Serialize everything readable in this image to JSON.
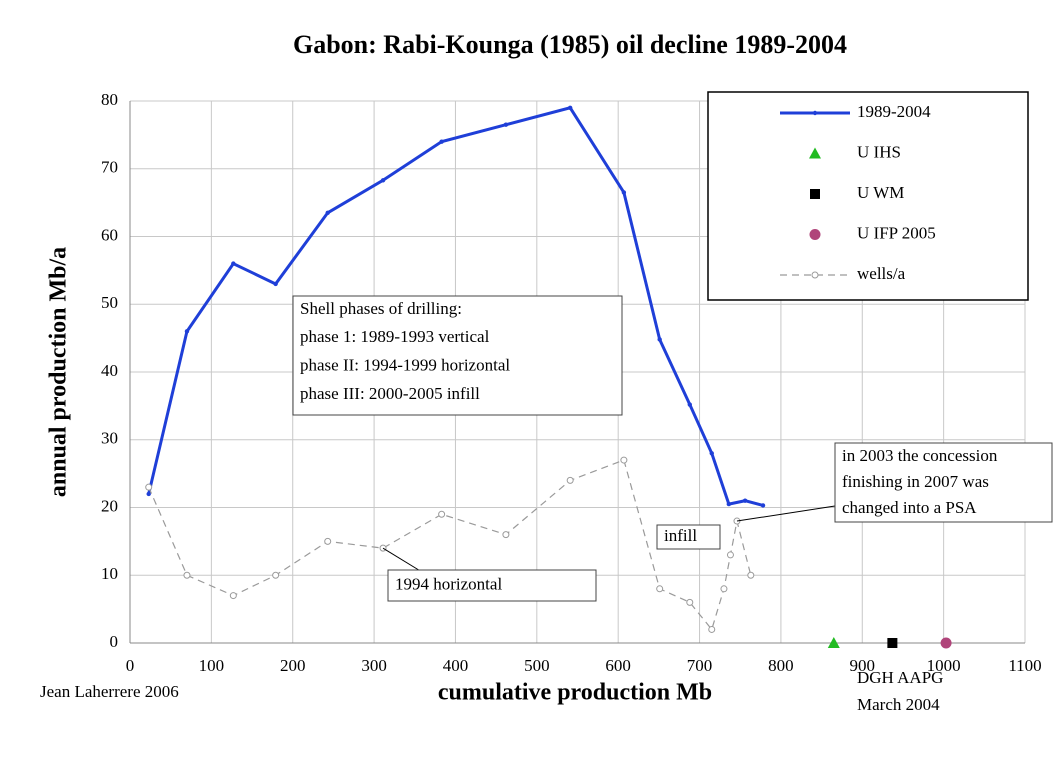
{
  "chart_data": {
    "type": "line",
    "title": "Gabon: Rabi-Kounga (1985) oil decline 1989-2004",
    "x_label": "cumulative production Mb",
    "y_label": "annual production Mb/a",
    "xlim": [
      0,
      1100
    ],
    "xticks": [
      0,
      100,
      200,
      300,
      400,
      500,
      600,
      700,
      800,
      900,
      1000,
      1100
    ],
    "ylim": [
      0,
      80
    ],
    "yticks": [
      0,
      10,
      20,
      30,
      40,
      50,
      60,
      70,
      80
    ],
    "grid": true,
    "legend": "upper right",
    "series": [
      {
        "name": "1989-2004",
        "color": "#1f3fd8",
        "marker": "dot",
        "dashed": false,
        "x": [
          23,
          70,
          127,
          179,
          243,
          311,
          383,
          462,
          541,
          607,
          651,
          688,
          715,
          736,
          756,
          778
        ],
        "values": [
          22,
          46,
          56,
          53,
          63.5,
          68.3,
          74,
          76.5,
          79,
          66.5,
          44.8,
          35.2,
          28,
          20.5,
          21,
          20.3
        ]
      },
      {
        "name": "U IHS",
        "color": "#22bb22",
        "marker": "triangle",
        "dashed": false,
        "x": [
          865
        ],
        "values": [
          0
        ]
      },
      {
        "name": "U WM",
        "color": "#000000",
        "marker": "square",
        "dashed": false,
        "x": [
          937
        ],
        "values": [
          0
        ]
      },
      {
        "name": "U IFP 2005",
        "color": "#b0447a",
        "marker": "circle",
        "dashed": false,
        "x": [
          1003
        ],
        "values": [
          0
        ]
      },
      {
        "name": "wells/a",
        "color": "#9a9a9a",
        "marker": "open-circle",
        "dashed": true,
        "x": [
          23,
          70,
          127,
          179,
          243,
          311,
          383,
          462,
          541,
          607,
          651,
          688,
          715,
          730,
          738,
          746,
          763
        ],
        "values": [
          23,
          10,
          7,
          10,
          15,
          14,
          19,
          16,
          24,
          27,
          8,
          6,
          2,
          8,
          13,
          18,
          10
        ]
      }
    ],
    "annotations": [
      [
        "Shell phases of drilling:",
        "phase 1: 1989-1993 vertical",
        "phase II: 1994-1999 horizontal",
        "phase III: 2000-2005 infill"
      ],
      [
        "1994 horizontal"
      ],
      [
        "infill"
      ],
      [
        "in 2003 the concession",
        "finishing in 2007 was",
        "changed into a PSA"
      ]
    ],
    "credit": "Jean Laherrere 2006",
    "source": [
      "DGH AAPG",
      "March 2004"
    ]
  }
}
